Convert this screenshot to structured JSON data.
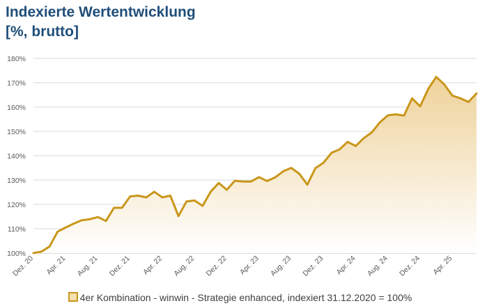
{
  "chart_data": {
    "type": "area",
    "title": "Indexierte Wertentwicklung",
    "subtitle": "[%, brutto]",
    "xlabel": "",
    "ylabel": "",
    "ylim": [
      100,
      180
    ],
    "yticks": [
      "100%",
      "110%",
      "120%",
      "130%",
      "140%",
      "150%",
      "160%",
      "170%",
      "180%"
    ],
    "xticks": [
      "Dez. 20",
      "Apr. 21",
      "Aug. 21",
      "Dez. 21",
      "Apr. 22",
      "Aug. 22",
      "Dez. 22",
      "Apr. 23",
      "Aug. 23",
      "Dez. 23",
      "Apr. 24",
      "Aug. 24",
      "Dez. 24",
      "Apr. 25"
    ],
    "grid": true,
    "legend_position": "bottom",
    "colors": {
      "line": "#c9961a",
      "fill_top": "#eed29a",
      "fill_bottom": "#ffffff",
      "title": "#1f4e79"
    },
    "series": [
      {
        "name": "4er Kombination - winwin - Strategie enhanced, indexiert 31.12.2020 = 100%",
        "values": [
          100,
          100.6,
          102.7,
          108.8,
          110.5,
          112.1,
          113.5,
          113.9,
          114.8,
          113.2,
          118.6,
          118.6,
          123.3,
          123.6,
          122.9,
          125.2,
          122.9,
          123.6,
          115.2,
          121.2,
          121.6,
          119.4,
          125.2,
          128.8,
          126.0,
          129.7,
          129.4,
          129.4,
          131.2,
          129.6,
          131.1,
          133.6,
          135.0,
          132.6,
          128.1,
          134.9,
          137.1,
          141.2,
          142.6,
          145.7,
          144.0,
          147.2,
          149.6,
          153.7,
          156.6,
          157.0,
          156.5,
          163.6,
          160.3,
          167.4,
          172.4,
          169.3,
          164.7,
          163.6,
          162.1,
          165.6
        ]
      }
    ]
  }
}
